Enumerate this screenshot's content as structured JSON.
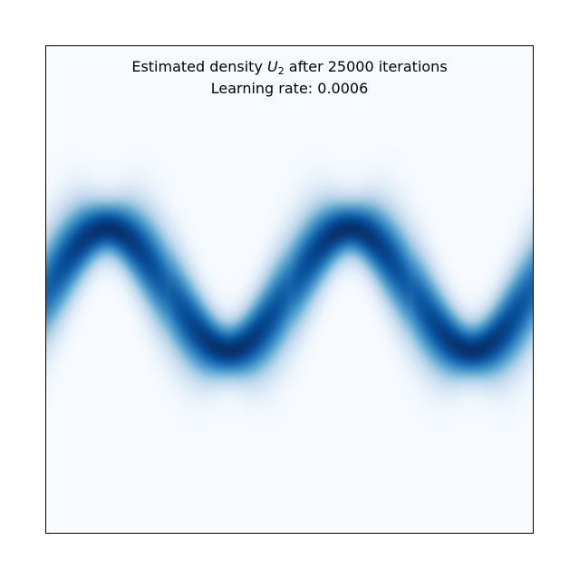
{
  "chart_data": {
    "type": "heatmap",
    "title_prefix": "Estimated density ",
    "title_symbol": "U",
    "title_subscript": "2",
    "title_suffix": " after 25000 iterations",
    "subtitle": "Learning rate: 0.0006",
    "colormap": "Blues",
    "axes_ticks": "none",
    "grid": false,
    "x_range": [
      -4,
      4
    ],
    "y_range": [
      -4,
      4
    ],
    "density_curve": {
      "form": "y = sin(2*pi*x/4)",
      "amplitude": 1.0,
      "period": 4.0,
      "band_sigma": 0.33
    },
    "colors": {
      "background_low": "#f7fbff",
      "peak": "#08306b",
      "frame": "#000000"
    }
  }
}
